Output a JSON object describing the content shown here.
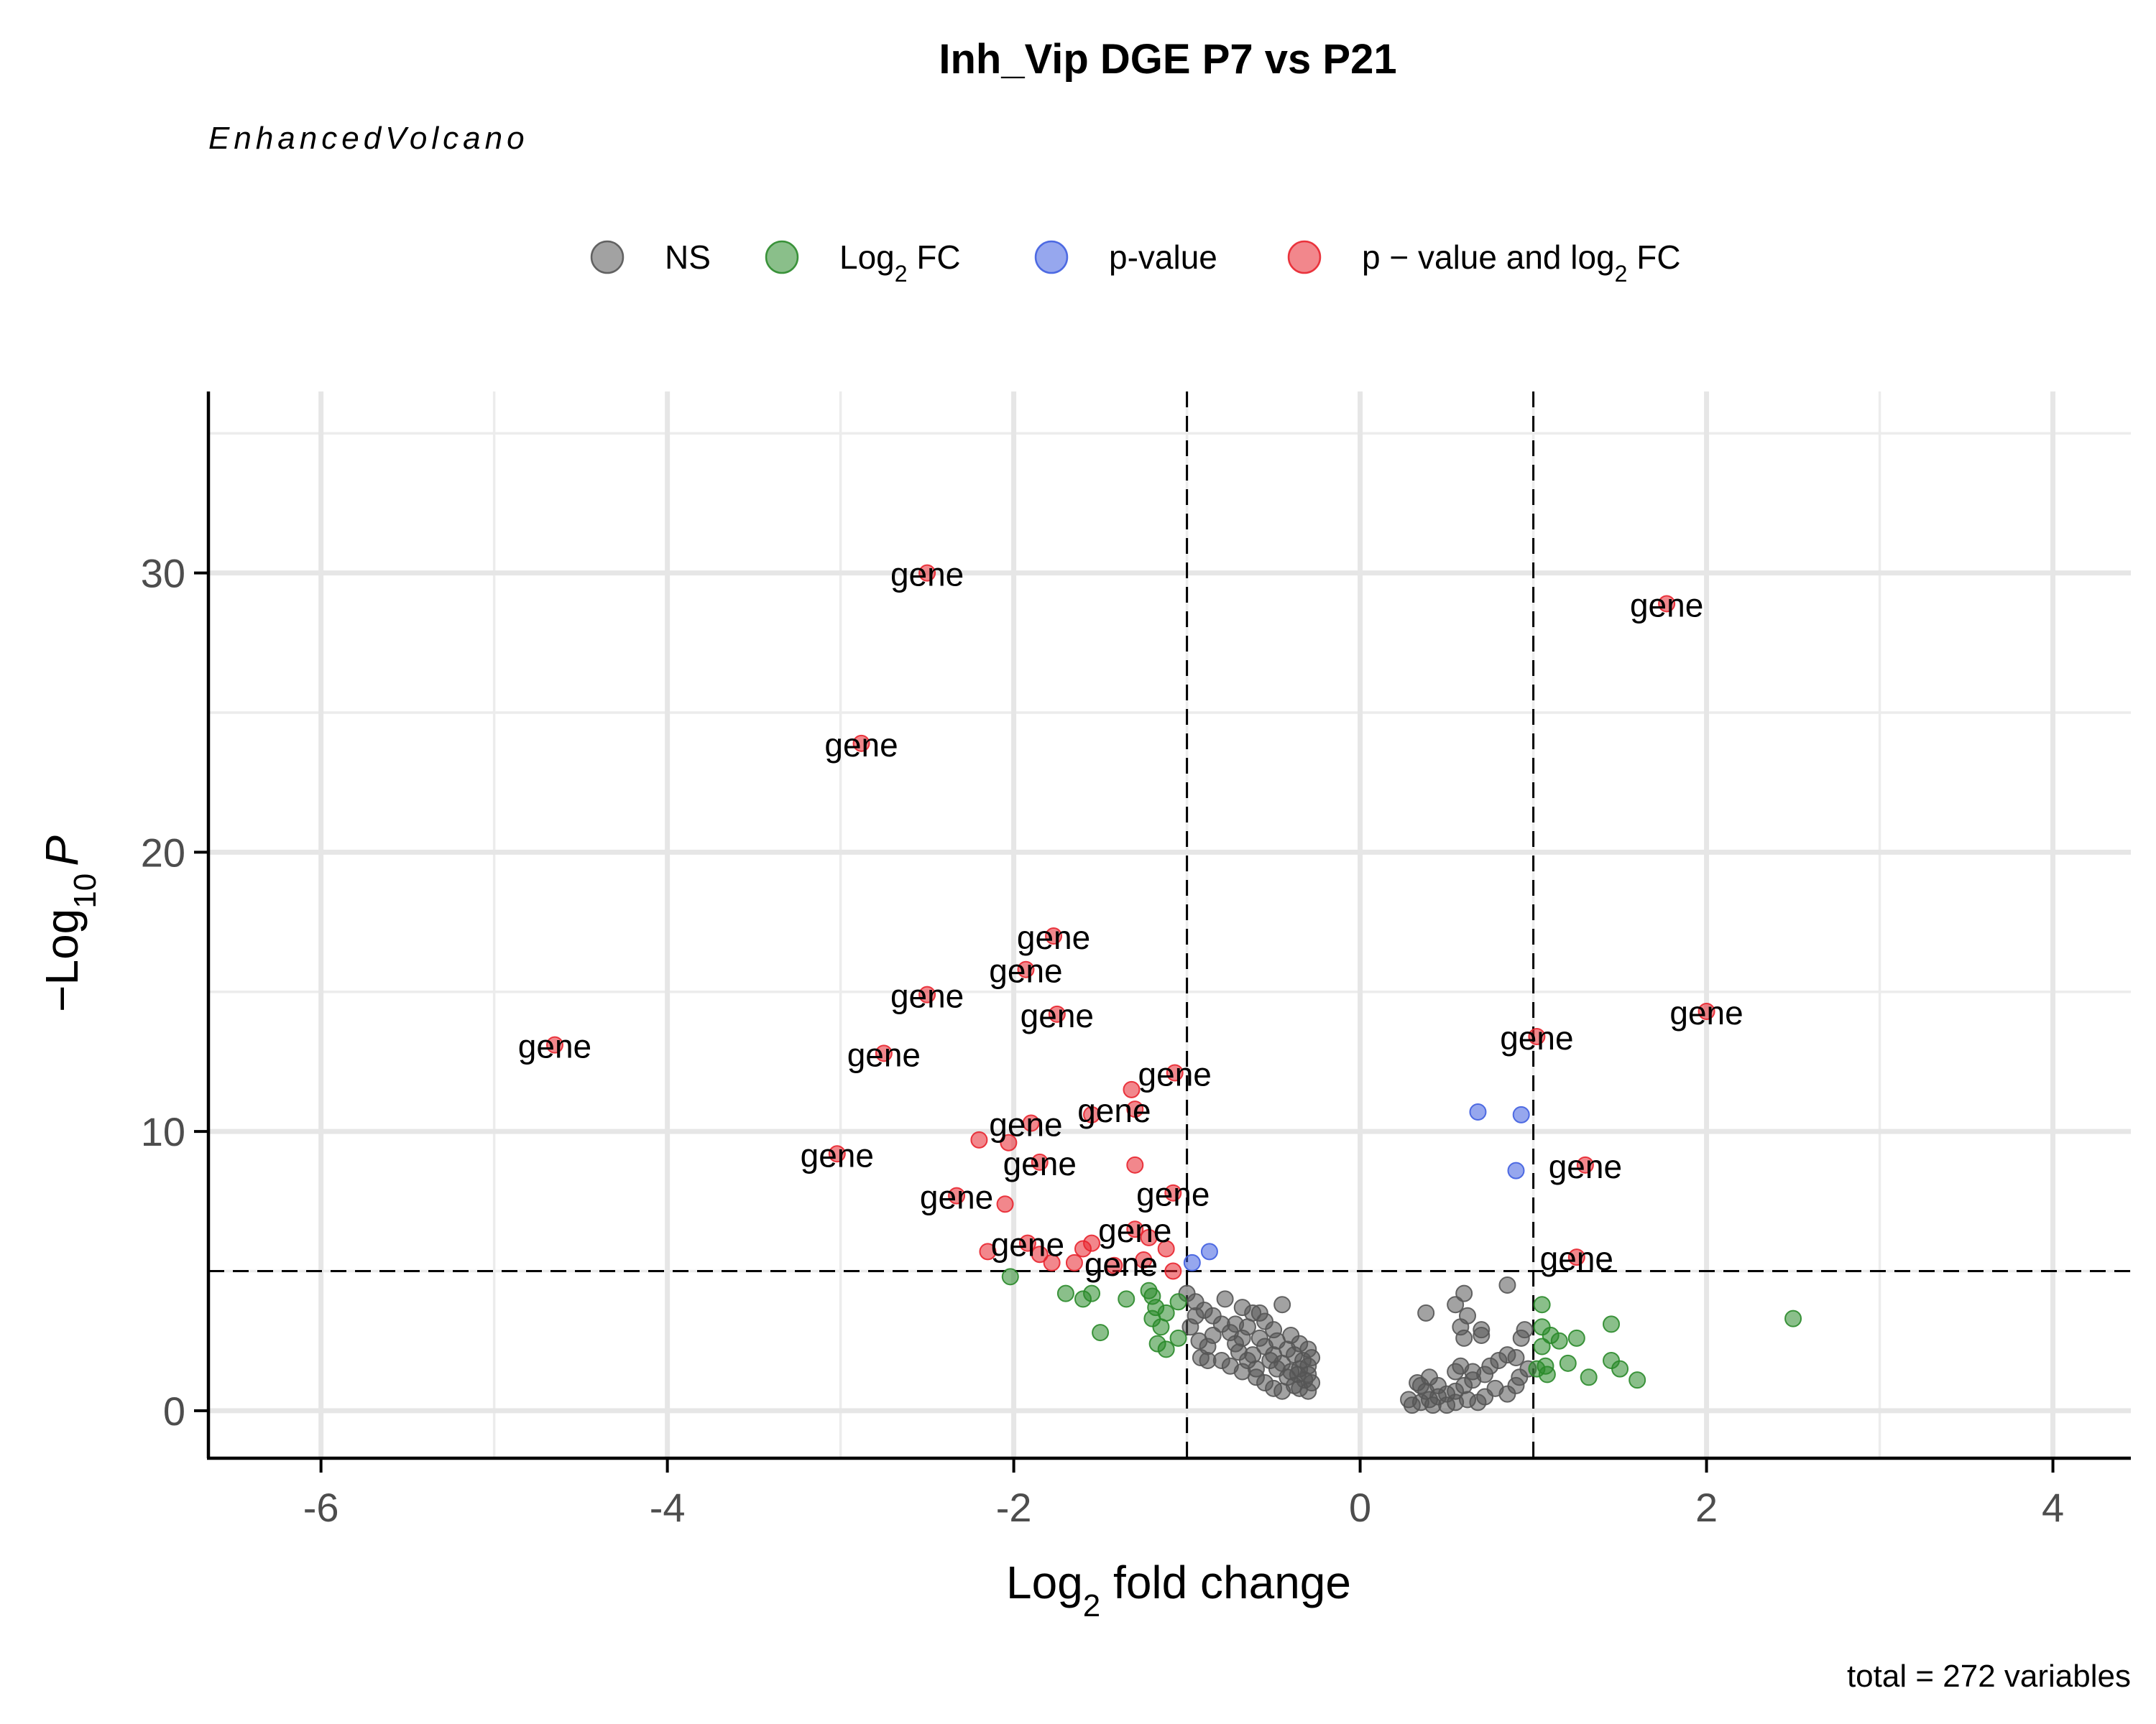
{
  "chart_data": {
    "type": "scatter",
    "title": "Inh_Vip DGE P7 vs P21",
    "subtitle": "EnhancedVolcano",
    "caption": "total = 272 variables",
    "xlabel": "Log2 fold change",
    "ylabel": "-Log10 P",
    "xlim": [
      -6.65,
      4.45
    ],
    "ylim": [
      -1.7,
      36.5
    ],
    "x_ticks": [
      -6,
      -4,
      -2,
      0,
      2,
      4
    ],
    "y_ticks": [
      0,
      10,
      20,
      30
    ],
    "cutoffs": {
      "fc": [
        -1,
        1
      ],
      "p": 5
    },
    "grid": true,
    "legend_position": "top",
    "gene_label_text": "gene",
    "colors": {
      "NS": "#555555",
      "FC": "#2a8a2a",
      "P": "#3f5ee0",
      "FCP": "#e8242e"
    },
    "legend": [
      {
        "key": "NS",
        "label": "NS"
      },
      {
        "key": "FC",
        "label": "Log",
        "sub": "2",
        "tail": " FC"
      },
      {
        "key": "P",
        "label": "p-value"
      },
      {
        "key": "FCP",
        "label": "p − value and log",
        "sub": "2",
        "tail": " FC"
      }
    ],
    "series": [
      {
        "key": "FCP",
        "points": [
          [
            -4.65,
            13.1
          ],
          [
            -3.02,
            9.2
          ],
          [
            -2.88,
            23.9
          ],
          [
            -2.5,
            30.0
          ],
          [
            -2.5,
            14.9
          ],
          [
            -2.75,
            12.8
          ],
          [
            -1.77,
            17.0
          ],
          [
            -1.93,
            15.8
          ],
          [
            -1.75,
            14.2
          ],
          [
            -1.07,
            12.1
          ],
          [
            -1.32,
            11.5
          ],
          [
            -1.3,
            10.8
          ],
          [
            -1.55,
            10.6
          ],
          [
            -1.9,
            10.3
          ],
          [
            -2.2,
            9.7
          ],
          [
            -2.03,
            9.6
          ],
          [
            -1.85,
            8.9
          ],
          [
            -1.3,
            8.8
          ],
          [
            -2.33,
            7.7
          ],
          [
            -2.05,
            7.4
          ],
          [
            -1.08,
            7.8
          ],
          [
            -1.3,
            6.5
          ],
          [
            -1.22,
            6.2
          ],
          [
            -1.55,
            6.0
          ],
          [
            -1.92,
            6.0
          ],
          [
            -2.15,
            5.7
          ],
          [
            -1.85,
            5.6
          ],
          [
            -1.6,
            5.8
          ],
          [
            -1.12,
            5.8
          ],
          [
            -1.25,
            5.4
          ],
          [
            -1.65,
            5.3
          ],
          [
            -1.78,
            5.3
          ],
          [
            -1.42,
            5.2
          ],
          [
            -1.08,
            5.0
          ],
          [
            1.77,
            28.9
          ],
          [
            2.0,
            14.3
          ],
          [
            1.02,
            13.4
          ],
          [
            1.3,
            8.8
          ],
          [
            1.25,
            5.5
          ]
        ]
      },
      {
        "key": "FC",
        "points": [
          [
            -2.02,
            4.8
          ],
          [
            -1.7,
            4.2
          ],
          [
            -1.6,
            4.0
          ],
          [
            -1.55,
            4.2
          ],
          [
            -1.35,
            4.0
          ],
          [
            -1.22,
            4.3
          ],
          [
            -1.2,
            4.1
          ],
          [
            -1.05,
            3.9
          ],
          [
            -1.18,
            3.7
          ],
          [
            -1.12,
            3.5
          ],
          [
            -1.2,
            3.3
          ],
          [
            -1.15,
            3.0
          ],
          [
            -1.05,
            2.6
          ],
          [
            -1.12,
            2.2
          ],
          [
            -1.17,
            2.4
          ],
          [
            -1.5,
            2.8
          ],
          [
            1.05,
            3.8
          ],
          [
            1.05,
            3.0
          ],
          [
            1.1,
            2.7
          ],
          [
            1.15,
            2.5
          ],
          [
            1.05,
            2.3
          ],
          [
            1.02,
            1.5
          ],
          [
            1.2,
            1.7
          ],
          [
            1.08,
            1.3
          ],
          [
            1.25,
            2.6
          ],
          [
            1.45,
            3.1
          ],
          [
            1.32,
            1.2
          ],
          [
            1.45,
            1.8
          ],
          [
            1.5,
            1.5
          ],
          [
            1.6,
            1.1
          ],
          [
            2.5,
            3.3
          ],
          [
            1.07,
            1.6
          ]
        ]
      },
      {
        "key": "P",
        "points": [
          [
            0.68,
            10.7
          ],
          [
            0.93,
            10.6
          ],
          [
            0.9,
            8.6
          ],
          [
            -0.87,
            5.7
          ],
          [
            -0.97,
            5.3
          ]
        ]
      },
      {
        "key": "NS",
        "points": [
          [
            -1.0,
            4.2
          ],
          [
            -0.95,
            3.9
          ],
          [
            -0.9,
            3.6
          ],
          [
            -0.78,
            4.0
          ],
          [
            -0.68,
            3.7
          ],
          [
            -0.45,
            3.8
          ],
          [
            -0.62,
            3.5
          ],
          [
            -0.55,
            3.2
          ],
          [
            -0.5,
            2.9
          ],
          [
            -0.4,
            2.7
          ],
          [
            -0.35,
            2.4
          ],
          [
            -0.3,
            2.2
          ],
          [
            -0.28,
            1.9
          ],
          [
            -0.3,
            1.6
          ],
          [
            -0.3,
            1.3
          ],
          [
            -0.28,
            1.0
          ],
          [
            -0.35,
            0.8
          ],
          [
            -0.32,
            1.1
          ],
          [
            -0.4,
            1.4
          ],
          [
            -0.45,
            1.7
          ],
          [
            -0.5,
            2.0
          ],
          [
            -0.55,
            2.3
          ],
          [
            -0.58,
            2.6
          ],
          [
            -0.6,
            1.5
          ],
          [
            -0.65,
            1.8
          ],
          [
            -0.7,
            2.1
          ],
          [
            -0.72,
            2.4
          ],
          [
            -0.75,
            2.8
          ],
          [
            -0.8,
            3.1
          ],
          [
            -0.85,
            2.7
          ],
          [
            -0.88,
            2.3
          ],
          [
            -0.92,
            1.9
          ],
          [
            -0.8,
            1.8
          ],
          [
            -0.75,
            1.6
          ],
          [
            -0.68,
            1.4
          ],
          [
            -0.6,
            1.2
          ],
          [
            -0.55,
            1.0
          ],
          [
            -0.5,
            0.8
          ],
          [
            -0.45,
            0.7
          ],
          [
            -0.38,
            0.9
          ],
          [
            -0.42,
            1.2
          ],
          [
            -0.48,
            1.5
          ],
          [
            -0.52,
            1.8
          ],
          [
            -0.35,
            1.5
          ],
          [
            -0.38,
            2.0
          ],
          [
            -0.62,
            2.0
          ],
          [
            -0.68,
            2.6
          ],
          [
            -0.72,
            3.1
          ],
          [
            -0.85,
            3.4
          ],
          [
            -0.98,
            3.0
          ],
          [
            -0.93,
            2.5
          ],
          [
            -0.88,
            1.8
          ],
          [
            -0.95,
            3.4
          ],
          [
            -0.65,
            3.0
          ],
          [
            -0.58,
            3.5
          ],
          [
            -0.48,
            2.5
          ],
          [
            -0.42,
            2.2
          ],
          [
            -0.33,
            1.8
          ],
          [
            -0.3,
            0.7
          ],
          [
            -0.36,
            1.3
          ],
          [
            0.85,
            4.5
          ],
          [
            0.6,
            4.2
          ],
          [
            0.55,
            3.8
          ],
          [
            0.38,
            3.5
          ],
          [
            0.62,
            3.4
          ],
          [
            0.58,
            3.0
          ],
          [
            0.7,
            2.9
          ],
          [
            0.6,
            2.6
          ],
          [
            0.7,
            2.7
          ],
          [
            0.95,
            2.9
          ],
          [
            0.93,
            2.6
          ],
          [
            0.85,
            2.0
          ],
          [
            0.9,
            1.9
          ],
          [
            0.8,
            1.8
          ],
          [
            0.75,
            1.6
          ],
          [
            0.72,
            1.3
          ],
          [
            0.65,
            1.1
          ],
          [
            0.6,
            0.9
          ],
          [
            0.55,
            0.7
          ],
          [
            0.5,
            0.6
          ],
          [
            0.45,
            0.5
          ],
          [
            0.4,
            0.4
          ],
          [
            0.35,
            0.3
          ],
          [
            0.3,
            0.2
          ],
          [
            0.35,
            0.9
          ],
          [
            0.4,
            1.2
          ],
          [
            0.45,
            0.9
          ],
          [
            0.55,
            1.4
          ],
          [
            0.58,
            1.6
          ],
          [
            0.65,
            1.4
          ],
          [
            0.78,
            0.8
          ],
          [
            0.85,
            0.6
          ],
          [
            0.9,
            0.9
          ],
          [
            0.92,
            1.2
          ],
          [
            0.97,
            1.5
          ],
          [
            0.42,
            0.2
          ],
          [
            0.5,
            0.2
          ],
          [
            0.55,
            0.3
          ],
          [
            0.62,
            0.4
          ],
          [
            0.68,
            0.3
          ],
          [
            0.72,
            0.5
          ],
          [
            0.28,
            0.4
          ],
          [
            0.38,
            0.7
          ],
          [
            0.33,
            1.0
          ]
        ]
      }
    ],
    "labels": [
      {
        "x": -2.5,
        "y": 30.0
      },
      {
        "x": 1.77,
        "y": 28.9
      },
      {
        "x": -2.88,
        "y": 23.9
      },
      {
        "x": -1.77,
        "y": 17.0
      },
      {
        "x": -1.93,
        "y": 15.8
      },
      {
        "x": -2.5,
        "y": 14.9
      },
      {
        "x": -1.75,
        "y": 14.2
      },
      {
        "x": 2.0,
        "y": 14.3
      },
      {
        "x": 1.02,
        "y": 13.4
      },
      {
        "x": -4.65,
        "y": 13.1
      },
      {
        "x": -2.75,
        "y": 12.8
      },
      {
        "x": -1.07,
        "y": 12.1
      },
      {
        "x": -1.42,
        "y": 10.8
      },
      {
        "x": -1.93,
        "y": 10.3
      },
      {
        "x": -3.02,
        "y": 9.2
      },
      {
        "x": -1.85,
        "y": 8.9
      },
      {
        "x": 1.3,
        "y": 8.8
      },
      {
        "x": -2.33,
        "y": 7.7
      },
      {
        "x": -1.08,
        "y": 7.8
      },
      {
        "x": -1.3,
        "y": 6.5
      },
      {
        "x": -1.92,
        "y": 6.0
      },
      {
        "x": 1.25,
        "y": 5.5
      },
      {
        "x": -1.38,
        "y": 5.3
      }
    ]
  }
}
